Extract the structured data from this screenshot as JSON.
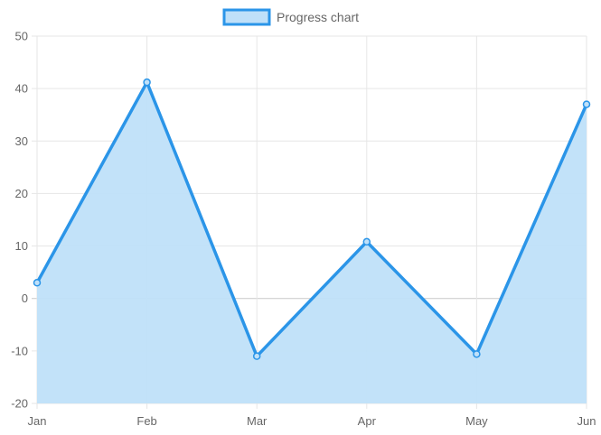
{
  "chart_data": {
    "type": "area",
    "title": "",
    "xlabel": "",
    "ylabel": "",
    "categories": [
      "Jan",
      "Feb",
      "Mar",
      "Apr",
      "May",
      "Jun"
    ],
    "series": [
      {
        "name": "Progress chart",
        "values": [
          3,
          41.2,
          -11,
          10.8,
          -10.6,
          37
        ]
      }
    ],
    "ylim": [
      -20,
      50
    ],
    "yticks": [
      -20,
      -10,
      0,
      10,
      20,
      30,
      40,
      50
    ],
    "grid": true,
    "legend_position": "top-center",
    "colors": {
      "line": "#2b95e8",
      "fill": "#bfe0f9",
      "grid": "#e6e6e6",
      "zero_line": "#c8c8c8",
      "tick_text": "#666666"
    }
  }
}
